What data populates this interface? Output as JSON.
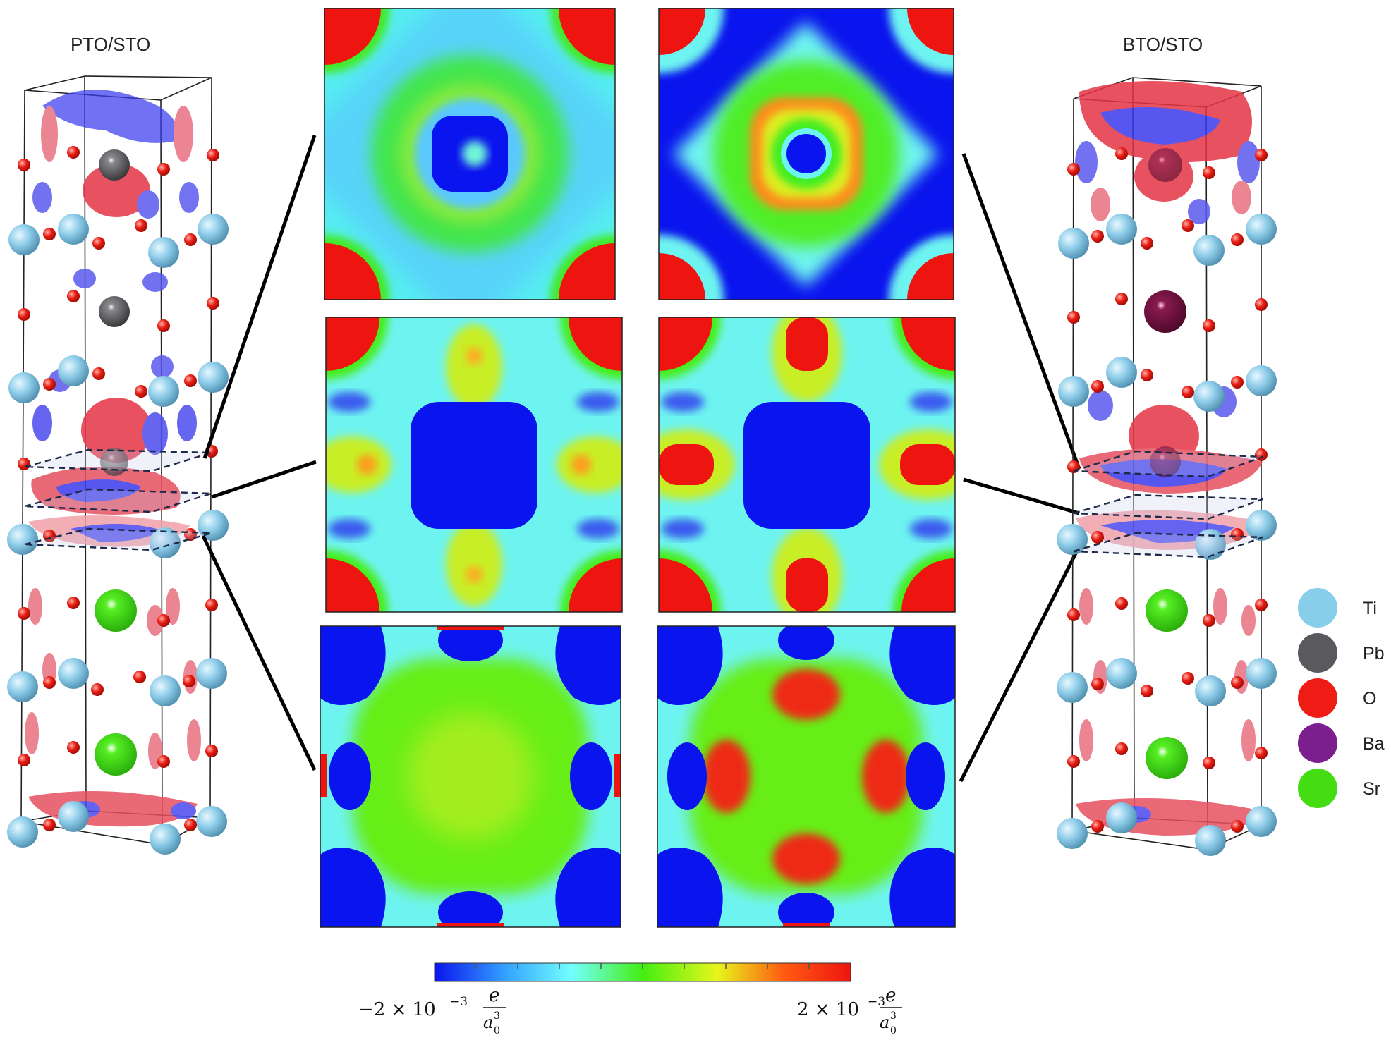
{
  "labels": {
    "left_structure": "PTO/STO",
    "right_structure": "BTO/STO"
  },
  "legend": [
    {
      "symbol": "Ti",
      "color": "#87ceeb"
    },
    {
      "symbol": "Pb",
      "color": "#5a5a5e"
    },
    {
      "symbol": "O",
      "color": "#ee1c14"
    },
    {
      "symbol": "Ba",
      "color": "#7b1f8f"
    },
    {
      "symbol": "Sr",
      "color": "#44dd12"
    }
  ],
  "colorbar": {
    "min_coef": "−2 × 10",
    "max_coef": "2 × 10",
    "exponent": "−3",
    "unit_num": "e",
    "unit_den_base": "a",
    "unit_den_sub": "0",
    "unit_den_sup": "3",
    "colors": [
      "#0a14ee",
      "#37a8ff",
      "#73ffff",
      "#44ee12",
      "#e8f51a",
      "#ff5a12",
      "#ee1510"
    ]
  },
  "panel_colors": {
    "blue": "#0a14ee",
    "cyan": "#7ef6f4",
    "green": "#44ee12",
    "yellow": "#e4ee1a",
    "orange": "#ff7a18",
    "red": "#ee1510"
  }
}
